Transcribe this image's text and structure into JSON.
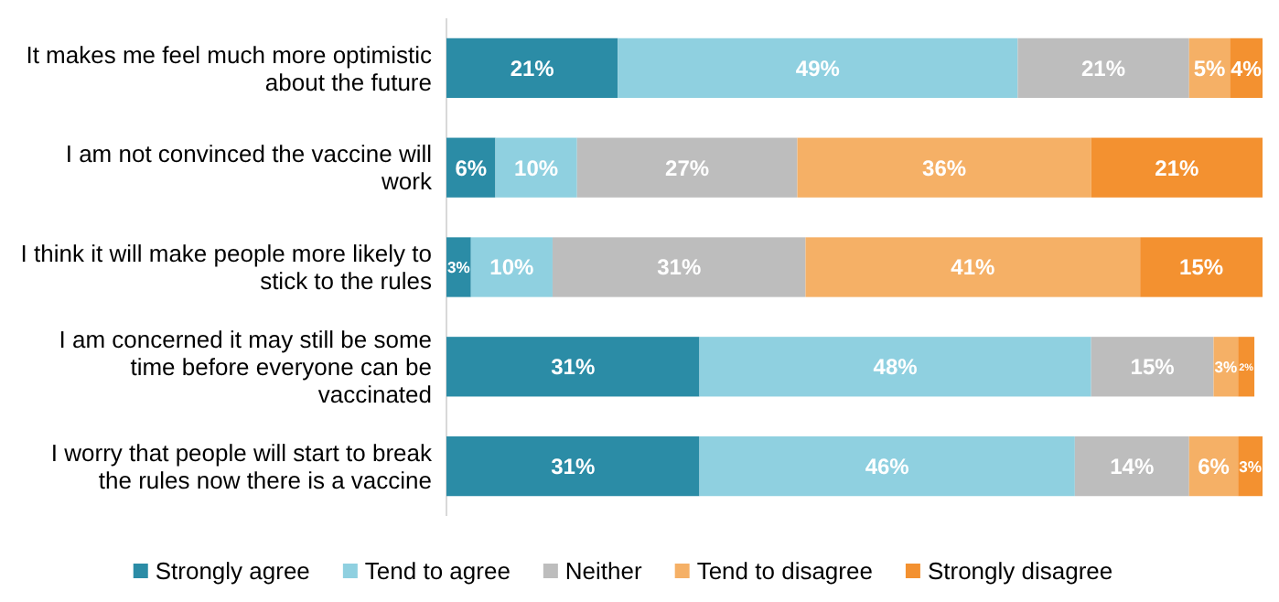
{
  "chart_data": {
    "type": "bar",
    "orientation": "horizontal",
    "stacked": true,
    "legend": "bottom",
    "tick_labels": "y",
    "categories": [
      "It makes me feel much more optimistic about the future",
      "I am not convinced the vaccine will work",
      "I think it will make people more likely to stick to the rules",
      "I am concerned it may still be some time before everyone can be vaccinated",
      "I worry that people will start to break the rules now there is a vaccine"
    ],
    "series": [
      {
        "name": "Strongly agree",
        "color": "#2b8ca6",
        "values": [
          21,
          6,
          3,
          31,
          31
        ],
        "value_labels": [
          "21%",
          "6%",
          "3%",
          "31%",
          "31%"
        ]
      },
      {
        "name": "Tend to agree",
        "color": "#8fd0e0",
        "values": [
          49,
          10,
          10,
          48,
          46
        ],
        "value_labels": [
          "49%",
          "10%",
          "10%",
          "48%",
          "46%"
        ]
      },
      {
        "name": "Neither",
        "color": "#bdbdbd",
        "values": [
          21,
          27,
          31,
          15,
          14
        ],
        "value_labels": [
          "21%",
          "27%",
          "31%",
          "15%",
          "14%"
        ]
      },
      {
        "name": "Tend to disagree",
        "color": "#f5b066",
        "values": [
          5,
          36,
          41,
          3,
          6
        ],
        "value_labels": [
          "5%",
          "36%",
          "41%",
          "3%",
          "6%"
        ]
      },
      {
        "name": "Strongly disagree",
        "color": "#f39130",
        "values": [
          4,
          21,
          15,
          2,
          3
        ],
        "value_labels": [
          "4%",
          "21%",
          "15%",
          "2%",
          "3%"
        ]
      }
    ]
  }
}
